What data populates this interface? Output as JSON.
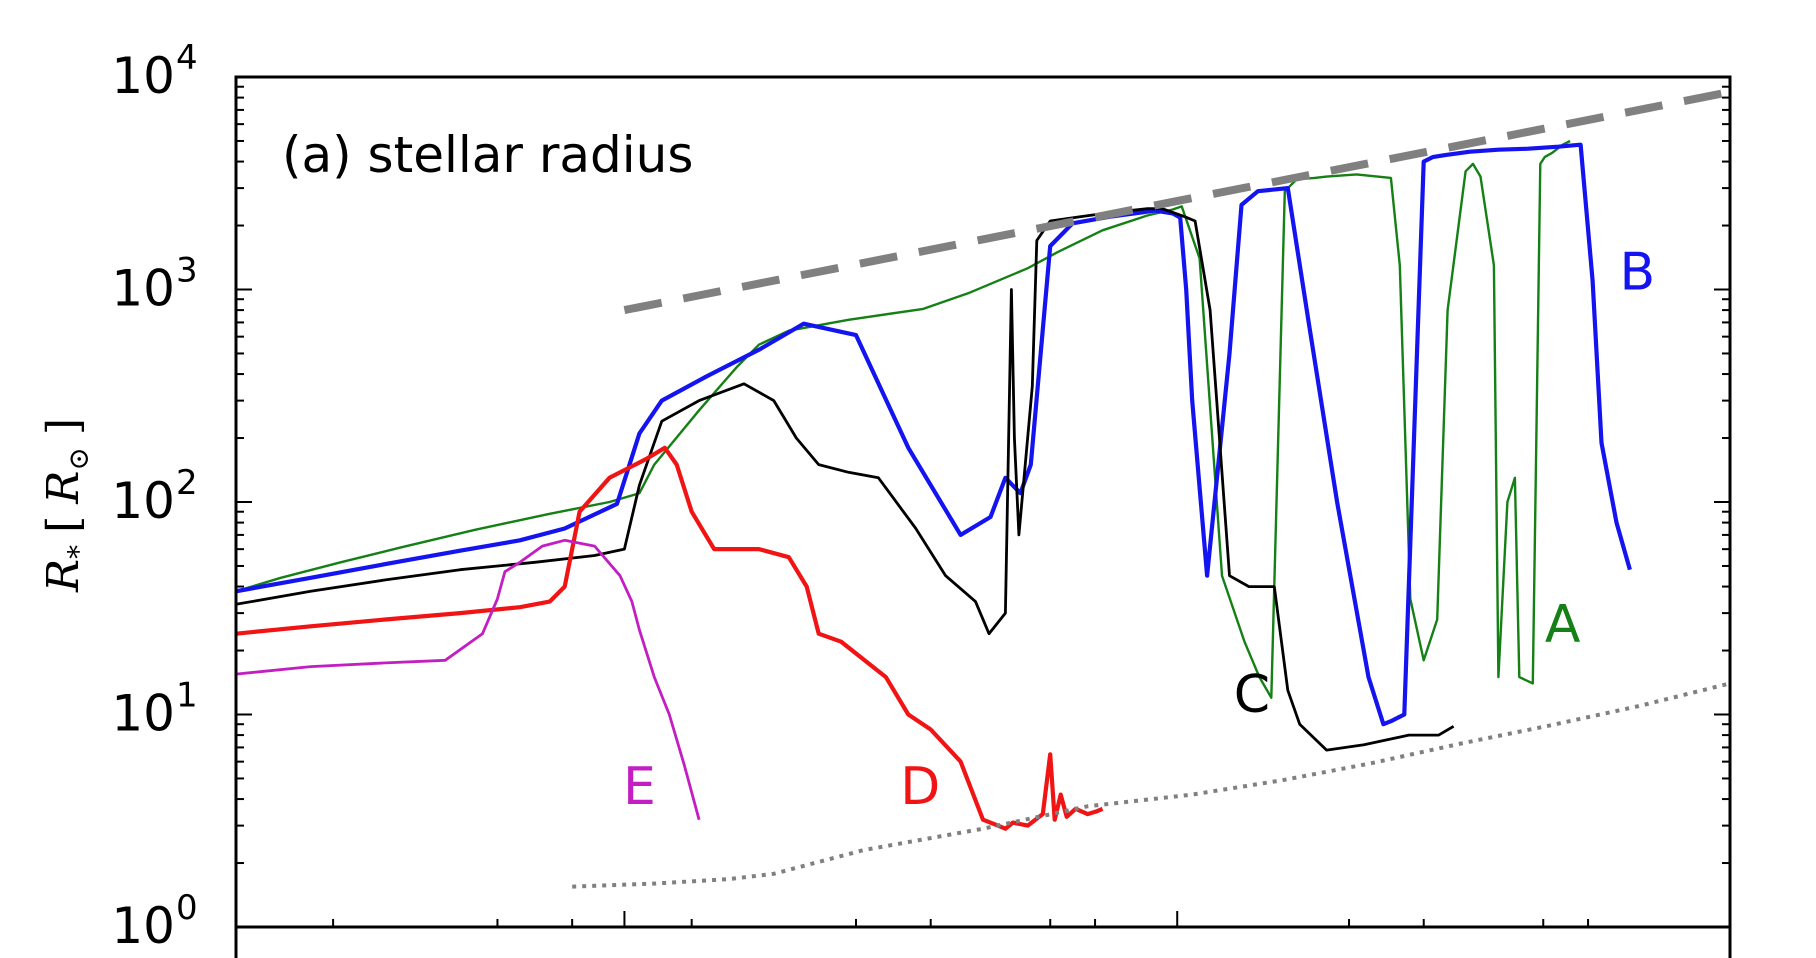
{
  "chart_data": {
    "type": "line",
    "title": "(a) stellar radius",
    "ylabel": {
      "base": "R",
      "sub": "*",
      "bracket_open": "[",
      "unit_base": "R",
      "unit_sub": "⊙",
      "bracket_close": "]"
    },
    "xlabel": "",
    "yscale": "log",
    "ylim": [
      1,
      10000
    ],
    "xlim": [
      0,
      100
    ],
    "yticks": [
      {
        "value": 1,
        "base": "10",
        "exp": "0"
      },
      {
        "value": 10,
        "base": "10",
        "exp": "1"
      },
      {
        "value": 100,
        "base": "10",
        "exp": "2"
      },
      {
        "value": 1000,
        "base": "10",
        "exp": "3"
      },
      {
        "value": 10000,
        "base": "10",
        "exp": "4"
      }
    ],
    "x_major_ticks": [
      26,
      63,
      100
    ],
    "x_minor_ticks": [
      6.5,
      17.5,
      22.5,
      30.5,
      41.5,
      46.5,
      54.5,
      57.5,
      74.5,
      79.5,
      87.5,
      90.5
    ],
    "grid": false,
    "series": [
      {
        "name": "A",
        "label_pos": {
          "x": 88.8,
          "y": 22
        },
        "color": "#158015",
        "width": 2.4,
        "x": [
          0,
          3,
          7,
          11,
          16,
          21,
          25,
          27,
          28,
          31,
          33.5,
          35,
          37,
          41,
          46,
          49,
          53,
          55,
          58,
          61,
          62.7,
          63.3,
          64.5,
          66,
          67.5,
          68.5,
          69.3,
          70.2,
          71,
          72.2,
          73,
          75,
          77.3,
          77.9,
          78.6,
          79.5,
          80.4,
          81.1,
          82.3,
          82.8,
          83.3,
          84.2,
          84.5,
          85.1,
          85.6,
          85.9,
          86.8,
          87.3,
          87.6,
          88.1,
          88.8,
          89.3
        ],
        "y": [
          38,
          44,
          52,
          61,
          74,
          88,
          100,
          110,
          150,
          270,
          430,
          550,
          640,
          720,
          810,
          960,
          1260,
          1500,
          1900,
          2230,
          2380,
          2460,
          1400,
          45,
          22,
          15,
          12,
          2900,
          3300,
          3350,
          3400,
          3480,
          3350,
          1300,
          35,
          18,
          28,
          800,
          3600,
          3900,
          3400,
          1300,
          15,
          100,
          130,
          15,
          14,
          3900,
          4200,
          4400,
          4800,
          5000
        ]
      },
      {
        "name": "B",
        "label_pos": {
          "x": 93.8,
          "y": 1000
        },
        "color": "#1414f0",
        "width": 4.2,
        "x": [
          0,
          5,
          10,
          15,
          19,
          22,
          25.5,
          27,
          28.5,
          31.5,
          35,
          38,
          41.5,
          45,
          48.5,
          50.5,
          51.5,
          52.5,
          53.2,
          54.5,
          56,
          58.5,
          61.5,
          62.7,
          63.2,
          63.6,
          64,
          65,
          66.5,
          67.3,
          68.4,
          70.4,
          71.8,
          73.7,
          75.8,
          76.8,
          77.3,
          78.2,
          79.5,
          80.1,
          81,
          82.6,
          84.5,
          86.5,
          88.5,
          90,
          90.8,
          91.4,
          92.4,
          93.3
        ],
        "y": [
          38,
          44,
          51,
          59,
          66,
          75,
          98,
          210,
          300,
          390,
          520,
          690,
          610,
          180,
          70,
          85,
          130,
          110,
          150,
          1600,
          2050,
          2200,
          2350,
          2280,
          2180,
          1000,
          300,
          45,
          500,
          2500,
          2900,
          3000,
          700,
          100,
          15,
          9,
          9.3,
          10,
          4000,
          4200,
          4300,
          4450,
          4550,
          4600,
          4700,
          4800,
          1100,
          190,
          80,
          48
        ]
      },
      {
        "name": "C",
        "label_pos": {
          "x": 68,
          "y": 10.3
        },
        "color": "#000000",
        "width": 2.8,
        "x": [
          0,
          5,
          10,
          15,
          20,
          24,
          26,
          27,
          28.5,
          31,
          34,
          36,
          37.5,
          39,
          41,
          43,
          45.5,
          47.5,
          49.5,
          50.4,
          51.5,
          51.9,
          52.1,
          52.4,
          53.3,
          53.6,
          54.5,
          56.5,
          58.5,
          61,
          62,
          63.5,
          64.2,
          65.2,
          66.5,
          67.8,
          69.5,
          70.4,
          71.2,
          73,
          75.5,
          78.5,
          80.5,
          81.5
        ],
        "y": [
          33,
          38,
          43,
          48,
          52,
          56,
          60,
          120,
          240,
          300,
          360,
          300,
          200,
          150,
          138,
          130,
          75,
          45,
          34,
          24,
          30,
          1000,
          200,
          70,
          350,
          1700,
          2100,
          2200,
          2300,
          2400,
          2400,
          2200,
          2100,
          800,
          45,
          40,
          40,
          13,
          9,
          6.8,
          7.2,
          8,
          8,
          8.8
        ]
      },
      {
        "name": "D",
        "label_pos": {
          "x": 45.8,
          "y": 3.8
        },
        "color": "#f01414",
        "width": 4.2,
        "x": [
          0,
          5,
          10,
          15,
          19,
          21,
          22,
          23,
          25,
          27.5,
          28.7,
          29.5,
          30.5,
          32,
          35,
          37,
          38.2,
          39,
          40.5,
          43.5,
          45,
          46.5,
          48.5,
          50,
          51,
          51.5,
          52,
          53,
          54,
          54.5,
          54.8,
          55.2,
          55.6,
          56.2,
          57,
          57.6,
          58
        ],
        "y": [
          24,
          26,
          28,
          30,
          32,
          34,
          40,
          90,
          130,
          160,
          180,
          150,
          90,
          60,
          60,
          55,
          40,
          24,
          22,
          15,
          10,
          8.5,
          6,
          3.2,
          3,
          2.9,
          3.1,
          3,
          3.4,
          6.5,
          3.2,
          4.2,
          3.3,
          3.6,
          3.4,
          3.5,
          3.6
        ]
      },
      {
        "name": "E",
        "label_pos": {
          "x": 27,
          "y": 3.8
        },
        "color": "#c21ec2",
        "width": 2.8,
        "x": [
          0,
          5,
          10,
          14,
          16.5,
          17.5,
          18,
          19,
          20.5,
          22,
          24,
          25.7,
          26.5,
          27,
          28,
          29,
          30,
          31
        ],
        "y": [
          15.5,
          16.8,
          17.5,
          18,
          24,
          35,
          47,
          52,
          62,
          66,
          62,
          45,
          34,
          25,
          15,
          10,
          5.8,
          3.2
        ]
      },
      {
        "name": "",
        "color": "#808080",
        "width": 8,
        "dash": [
          38,
          22
        ],
        "x": [
          26,
          100
        ],
        "y": [
          800,
          8500
        ]
      },
      {
        "name": "",
        "color": "#808080",
        "width": 4,
        "dash": [
          4,
          6
        ],
        "x": [
          22.5,
          28,
          33,
          36,
          42,
          50,
          57,
          64,
          70,
          76,
          82,
          88,
          94,
          100
        ],
        "y": [
          1.55,
          1.6,
          1.68,
          1.78,
          2.3,
          2.9,
          3.7,
          4.2,
          4.9,
          5.9,
          7.3,
          8.9,
          11,
          14
        ]
      }
    ]
  }
}
